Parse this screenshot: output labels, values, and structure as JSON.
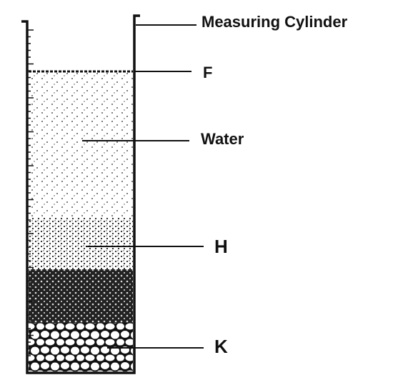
{
  "labels": {
    "cylinder": "Measuring Cylinder",
    "f": "F",
    "water": "Water",
    "h": "H",
    "k": "K"
  }
}
